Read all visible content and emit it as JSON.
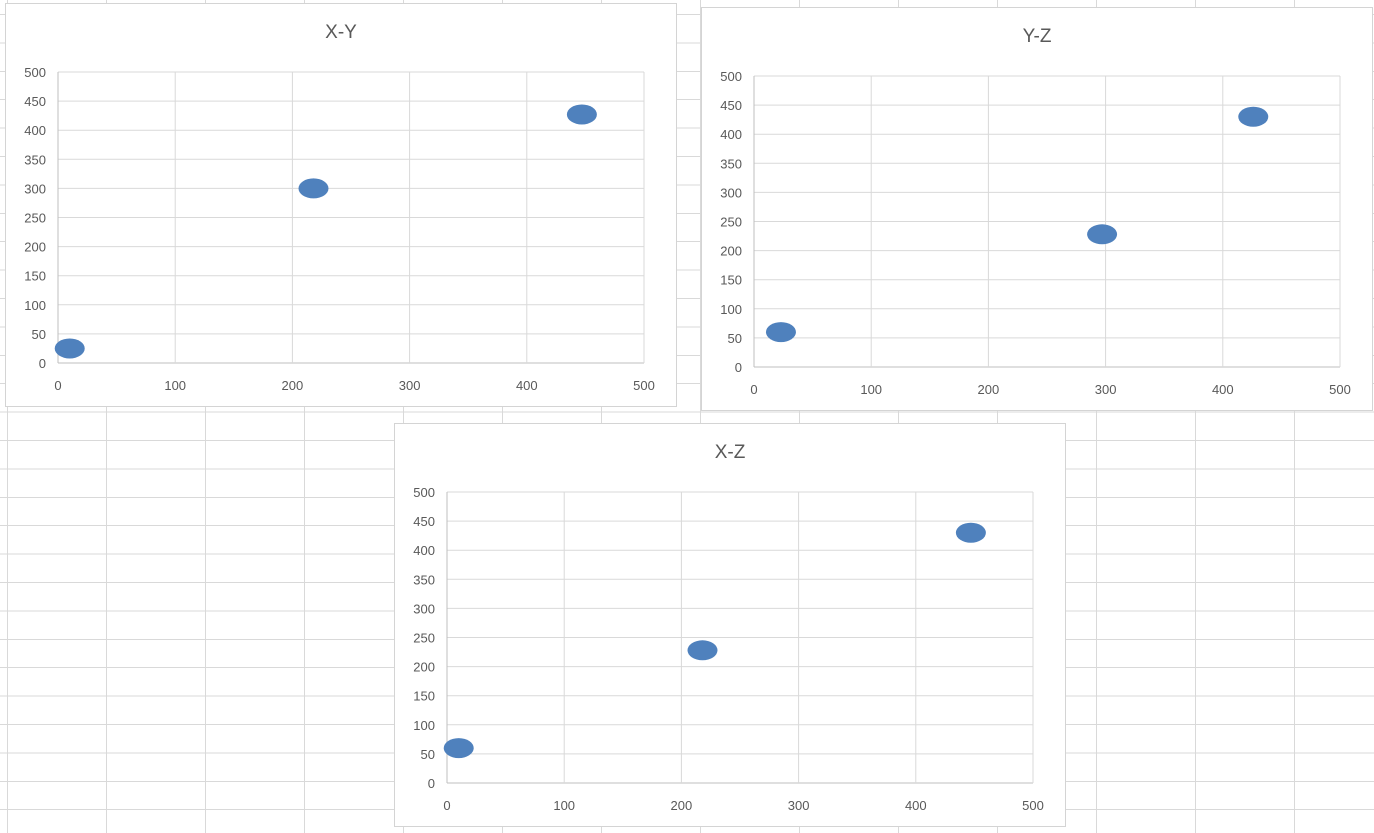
{
  "chart_data": [
    {
      "type": "scatter",
      "title": "X-Y",
      "xlabel": "",
      "ylabel": "",
      "xlim": [
        0,
        500
      ],
      "ylim": [
        0,
        500
      ],
      "xticks": [
        "0",
        "100",
        "200",
        "300",
        "400",
        "500"
      ],
      "yticks": [
        "0",
        "50",
        "100",
        "150",
        "200",
        "250",
        "300",
        "350",
        "400",
        "450",
        "500"
      ],
      "grid": true,
      "legend": "none",
      "marker_color": "#4f81bd",
      "points": [
        {
          "x": 10,
          "y": 25
        },
        {
          "x": 218,
          "y": 300
        },
        {
          "x": 447,
          "y": 427
        }
      ]
    },
    {
      "type": "scatter",
      "title": "Y-Z",
      "xlabel": "",
      "ylabel": "",
      "xlim": [
        0,
        500
      ],
      "ylim": [
        0,
        500
      ],
      "xticks": [
        "0",
        "100",
        "200",
        "300",
        "400",
        "500"
      ],
      "yticks": [
        "0",
        "50",
        "100",
        "150",
        "200",
        "250",
        "300",
        "350",
        "400",
        "450",
        "500"
      ],
      "grid": true,
      "legend": "none",
      "marker_color": "#4f81bd",
      "points": [
        {
          "x": 23,
          "y": 60
        },
        {
          "x": 297,
          "y": 228
        },
        {
          "x": 426,
          "y": 430
        }
      ]
    },
    {
      "type": "scatter",
      "title": "X-Z",
      "xlabel": "",
      "ylabel": "",
      "xlim": [
        0,
        500
      ],
      "ylim": [
        0,
        500
      ],
      "xticks": [
        "0",
        "100",
        "200",
        "300",
        "400",
        "500"
      ],
      "yticks": [
        "0",
        "50",
        "100",
        "150",
        "200",
        "250",
        "300",
        "350",
        "400",
        "450",
        "500"
      ],
      "grid": true,
      "legend": "none",
      "marker_color": "#4f81bd",
      "points": [
        {
          "x": 10,
          "y": 60
        },
        {
          "x": 218,
          "y": 228
        },
        {
          "x": 447,
          "y": 430
        }
      ]
    }
  ]
}
